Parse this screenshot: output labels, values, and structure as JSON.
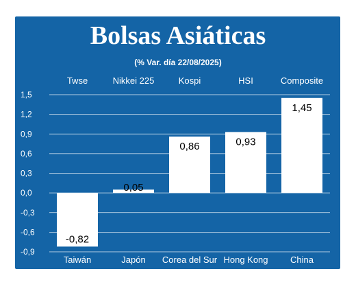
{
  "chart_data": {
    "type": "bar",
    "title": "Bolsas Asiáticas",
    "subtitle": "(% Var. día  22/08/2025)",
    "index_names": [
      "Twse",
      "Nikkei 225",
      "Kospi",
      "HSI",
      "Composite"
    ],
    "categories": [
      "Taiwán",
      "Japón",
      "Corea del Sur",
      "Hong Kong",
      "China"
    ],
    "values": [
      -0.82,
      0.05,
      0.86,
      0.93,
      1.45
    ],
    "value_labels": [
      "-0,82",
      "0,05",
      "0,86",
      "0,93",
      "1,45"
    ],
    "yticks": [
      "-0,9",
      "-0,6",
      "-0,3",
      "0,0",
      "0,3",
      "0,6",
      "0,9",
      "1,2",
      "1,5"
    ],
    "ylim": [
      -0.9,
      1.5
    ],
    "grid": true,
    "colors": {
      "panel": "#1464a6",
      "bar": "#ffffff",
      "grid": "#ffffff",
      "text": "#ffffff",
      "label": "#000000"
    }
  }
}
